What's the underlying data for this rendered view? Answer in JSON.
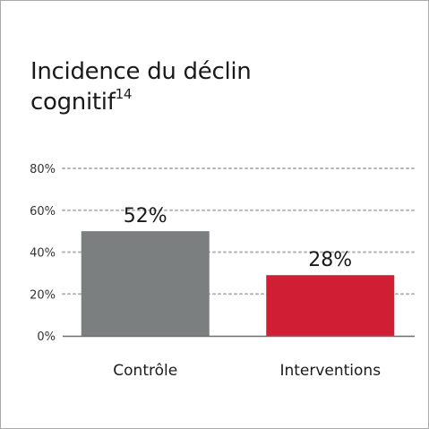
{
  "title": {
    "line1": "Incidence du déclin",
    "line2": "cognitif",
    "superscript": "14"
  },
  "chart_data": {
    "type": "bar",
    "title": "Incidence du déclin cognitif14",
    "categories": [
      "Contrôle",
      "Interventions"
    ],
    "values": [
      52,
      28
    ],
    "value_labels": [
      "52%",
      "28%"
    ],
    "colors": [
      "#7b7f80",
      "#d01f35"
    ],
    "ylim": [
      0,
      80
    ],
    "yticks": [
      0,
      20,
      40,
      60,
      80
    ],
    "ytick_labels": [
      "0%",
      "20%",
      "40%",
      "60%",
      "80%"
    ],
    "xlabel": "",
    "ylabel": "",
    "grid": true
  }
}
